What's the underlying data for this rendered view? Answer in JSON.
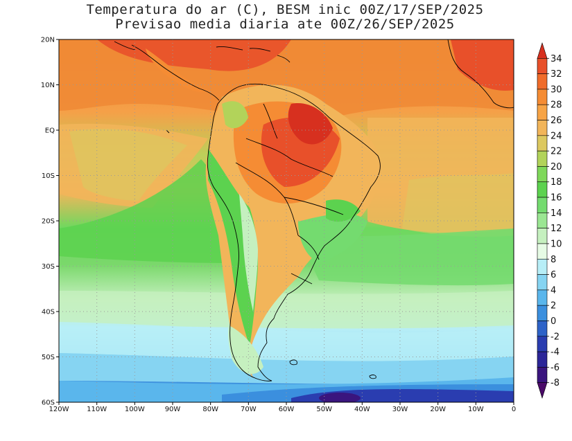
{
  "title_line1": "Temperatura do ar (C), BESM inic 00Z/17/SEP/2025",
  "title_line2": "Previsao media diaria ate 00Z/26/SEP/2025",
  "lat_labels": [
    "20N",
    "10N",
    "EQ",
    "10S",
    "20S",
    "30S",
    "40S",
    "50S",
    "60S"
  ],
  "lon_labels": [
    "120W",
    "110W",
    "100W",
    "90W",
    "80W",
    "70W",
    "60W",
    "50W",
    "40W",
    "30W",
    "20W",
    "10W",
    "0"
  ],
  "map_extent": {
    "lon_min": -120,
    "lon_max": 0,
    "lat_min": -60,
    "lat_max": 20
  },
  "colorbar": {
    "labels": [
      "34",
      "32",
      "30",
      "28",
      "26",
      "24",
      "22",
      "20",
      "18",
      "16",
      "14",
      "12",
      "10",
      "8",
      "6",
      "4",
      "2",
      "0",
      "-2",
      "-4",
      "-6",
      "-8"
    ],
    "colors": [
      "#d7301f",
      "#e8502a",
      "#f06c2a",
      "#f58c34",
      "#f7a446",
      "#f2b55a",
      "#dcc860",
      "#b2d35a",
      "#7fd85a",
      "#5cd24f",
      "#74db6f",
      "#9be693",
      "#c5f0bf",
      "#e6fbe5",
      "#b7eef7",
      "#86d4f2",
      "#5ab6ec",
      "#3b8fde",
      "#2e63c8",
      "#2a3db0",
      "#2c2698",
      "#3a157e",
      "#4a0a68"
    ]
  },
  "legend_text": []
}
